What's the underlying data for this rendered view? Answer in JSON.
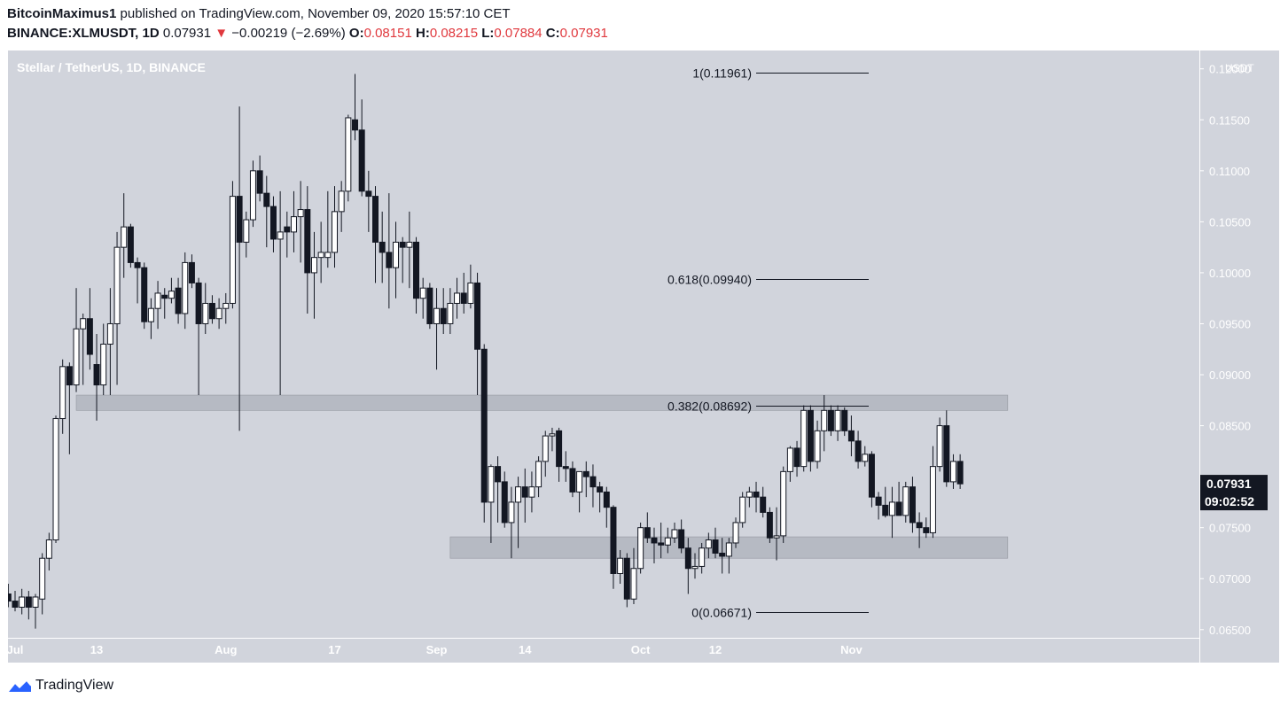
{
  "header": {
    "author": "BitcoinMaximus1",
    "published": "published on TradingView.com, November 09, 2020 15:57:10 CET",
    "symbol": "BINANCE:XLMUSDT, 1D",
    "last": "0.07931",
    "change": "−0.00219 (−2.69%)",
    "open_label": "O:",
    "open": "0.08151",
    "high_label": "H:",
    "high": "0.08215",
    "low_label": "L:",
    "low": "0.07884",
    "close_label": "C:",
    "close": "0.07931"
  },
  "footer": {
    "brand": "TradingView"
  },
  "colors": {
    "background": "#d1d4dc",
    "bull_body": "#ffffff",
    "bear_body": "#131722",
    "wick": "#131722",
    "zone": "#b2b5be",
    "price_tag": "#131722",
    "change_red": "#e0383d"
  },
  "chart_data": {
    "type": "candlestick",
    "title": "Stellar / TetherUS, 1D, BINANCE",
    "y_unit_label": "USDT",
    "ylim": [
      0.0642,
      0.1218
    ],
    "y_ticks": [
      "0.12000",
      "0.11500",
      "0.11000",
      "0.10500",
      "0.10000",
      "0.09500",
      "0.09000",
      "0.08500",
      "0.07500",
      "0.07000",
      "0.06500"
    ],
    "x_ticks": [
      {
        "date": "2020-07-01",
        "label": "Jul"
      },
      {
        "date": "2020-07-13",
        "label": "13"
      },
      {
        "date": "2020-08-01",
        "label": "Aug"
      },
      {
        "date": "2020-08-17",
        "label": "17"
      },
      {
        "date": "2020-09-01",
        "label": "Sep"
      },
      {
        "date": "2020-09-14",
        "label": "14"
      },
      {
        "date": "2020-10-01",
        "label": "Oct"
      },
      {
        "date": "2020-10-12",
        "label": "12"
      },
      {
        "date": "2020-11-01",
        "label": "Nov"
      }
    ],
    "last_price": "0.07931",
    "countdown": "09:02:52",
    "fib_levels": [
      {
        "label": "1(0.11961)",
        "value": 0.11961
      },
      {
        "label": "0.618(0.09940)",
        "value": 0.0994
      },
      {
        "label": "0.382(0.08692)",
        "value": 0.08692
      },
      {
        "label": "0(0.06671)",
        "value": 0.06671
      }
    ],
    "zones": [
      {
        "from_date": "2020-07-10",
        "to_date": "2020-11-24",
        "low": 0.0865,
        "high": 0.088
      },
      {
        "from_date": "2020-09-03",
        "to_date": "2020-11-24",
        "low": 0.072,
        "high": 0.0741
      }
    ],
    "ohlc": [
      [
        "2020-06-29",
        0.068,
        0.069,
        0.067,
        0.0685
      ],
      [
        "2020-06-30",
        0.0685,
        0.0695,
        0.0672,
        0.0678
      ],
      [
        "2020-07-01",
        0.0678,
        0.0688,
        0.0668,
        0.0672
      ],
      [
        "2020-07-02",
        0.0672,
        0.069,
        0.0665,
        0.0682
      ],
      [
        "2020-07-03",
        0.0682,
        0.0688,
        0.066,
        0.0672
      ],
      [
        "2020-07-04",
        0.0672,
        0.0685,
        0.0651,
        0.0682
      ],
      [
        "2020-07-05",
        0.068,
        0.0725,
        0.0665,
        0.072
      ],
      [
        "2020-07-06",
        0.072,
        0.0745,
        0.0708,
        0.0738
      ],
      [
        "2020-07-07",
        0.0738,
        0.086,
        0.0735,
        0.0857
      ],
      [
        "2020-07-08",
        0.0857,
        0.0915,
        0.0842,
        0.0908
      ],
      [
        "2020-07-09",
        0.0908,
        0.0912,
        0.0822,
        0.089
      ],
      [
        "2020-07-10",
        0.089,
        0.0985,
        0.0883,
        0.0945
      ],
      [
        "2020-07-11",
        0.0945,
        0.096,
        0.089,
        0.0955
      ],
      [
        "2020-07-12",
        0.0955,
        0.0985,
        0.0905,
        0.092
      ],
      [
        "2020-07-13",
        0.091,
        0.094,
        0.0855,
        0.089
      ],
      [
        "2020-07-14",
        0.089,
        0.095,
        0.088,
        0.093
      ],
      [
        "2020-07-15",
        0.093,
        0.0985,
        0.088,
        0.095
      ],
      [
        "2020-07-16",
        0.095,
        0.104,
        0.089,
        0.1025
      ],
      [
        "2020-07-17",
        0.1025,
        0.1078,
        0.0995,
        0.1045
      ],
      [
        "2020-07-18",
        0.1045,
        0.1048,
        0.1005,
        0.101
      ],
      [
        "2020-07-19",
        0.101,
        0.1015,
        0.097,
        0.1005
      ],
      [
        "2020-07-20",
        0.1005,
        0.101,
        0.0945,
        0.0952
      ],
      [
        "2020-07-21",
        0.0952,
        0.0975,
        0.0935,
        0.0965
      ],
      [
        "2020-07-22",
        0.0965,
        0.0992,
        0.0945,
        0.098
      ],
      [
        "2020-07-23",
        0.0978,
        0.0985,
        0.0955,
        0.0975
      ],
      [
        "2020-07-24",
        0.0975,
        0.0995,
        0.097,
        0.0982
      ],
      [
        "2020-07-25",
        0.0985,
        0.0995,
        0.095,
        0.096
      ],
      [
        "2020-07-26",
        0.096,
        0.102,
        0.0945,
        0.101
      ],
      [
        "2020-07-27",
        0.101,
        0.1018,
        0.0985,
        0.099
      ],
      [
        "2020-07-28",
        0.099,
        0.0995,
        0.088,
        0.095
      ],
      [
        "2020-07-29",
        0.095,
        0.099,
        0.094,
        0.097
      ],
      [
        "2020-07-30",
        0.097,
        0.0978,
        0.095,
        0.0955
      ],
      [
        "2020-07-31",
        0.0955,
        0.0975,
        0.0945,
        0.0965
      ],
      [
        "2020-08-01",
        0.0965,
        0.098,
        0.095,
        0.097
      ],
      [
        "2020-08-02",
        0.097,
        0.109,
        0.0965,
        0.1075
      ],
      [
        "2020-08-03",
        0.1075,
        0.1163,
        0.0845,
        0.103
      ],
      [
        "2020-08-04",
        0.103,
        0.106,
        0.1015,
        0.1052
      ],
      [
        "2020-08-05",
        0.1052,
        0.111,
        0.1045,
        0.11
      ],
      [
        "2020-08-06",
        0.11,
        0.1115,
        0.107,
        0.1078
      ],
      [
        "2020-08-07",
        0.1078,
        0.1095,
        0.1025,
        0.1065
      ],
      [
        "2020-08-08",
        0.1065,
        0.1075,
        0.102,
        0.1033
      ],
      [
        "2020-08-09",
        0.1033,
        0.108,
        0.088,
        0.104
      ],
      [
        "2020-08-10",
        0.1045,
        0.106,
        0.1015,
        0.104
      ],
      [
        "2020-08-11",
        0.104,
        0.108,
        0.102,
        0.1055
      ],
      [
        "2020-08-12",
        0.1055,
        0.109,
        0.101,
        0.1062
      ],
      [
        "2020-08-13",
        0.1062,
        0.1085,
        0.096,
        0.1
      ],
      [
        "2020-08-14",
        0.1,
        0.104,
        0.0955,
        0.1015
      ],
      [
        "2020-08-15",
        0.1015,
        0.105,
        0.099,
        0.102
      ],
      [
        "2020-08-16",
        0.1015,
        0.108,
        0.1005,
        0.102
      ],
      [
        "2020-08-17",
        0.102,
        0.1085,
        0.1005,
        0.106
      ],
      [
        "2020-08-18",
        0.106,
        0.109,
        0.104,
        0.108
      ],
      [
        "2020-08-19",
        0.108,
        0.1155,
        0.107,
        0.1152
      ],
      [
        "2020-08-20",
        0.115,
        0.1195,
        0.113,
        0.114
      ],
      [
        "2020-08-21",
        0.114,
        0.117,
        0.1075,
        0.108
      ],
      [
        "2020-08-22",
        0.108,
        0.11,
        0.104,
        0.1075
      ],
      [
        "2020-08-23",
        0.1075,
        0.1085,
        0.099,
        0.103
      ],
      [
        "2020-08-24",
        0.103,
        0.106,
        0.099,
        0.102
      ],
      [
        "2020-08-25",
        0.102,
        0.1078,
        0.0965,
        0.1005
      ],
      [
        "2020-08-26",
        0.1005,
        0.105,
        0.0975,
        0.103
      ],
      [
        "2020-08-27",
        0.103,
        0.1035,
        0.099,
        0.1025
      ],
      [
        "2020-08-28",
        0.1025,
        0.106,
        0.0985,
        0.103
      ],
      [
        "2020-08-29",
        0.103,
        0.1035,
        0.096,
        0.0975
      ],
      [
        "2020-08-30",
        0.0975,
        0.0995,
        0.0955,
        0.0985
      ],
      [
        "2020-08-31",
        0.0985,
        0.099,
        0.0945,
        0.095
      ],
      [
        "2020-09-01",
        0.095,
        0.0985,
        0.0905,
        0.0965
      ],
      [
        "2020-09-02",
        0.0965,
        0.0985,
        0.094,
        0.095
      ],
      [
        "2020-09-03",
        0.095,
        0.0985,
        0.094,
        0.097
      ],
      [
        "2020-09-04",
        0.097,
        0.0995,
        0.0955,
        0.098
      ],
      [
        "2020-09-05",
        0.098,
        0.1,
        0.096,
        0.097
      ],
      [
        "2020-09-06",
        0.097,
        0.1008,
        0.0965,
        0.099
      ],
      [
        "2020-09-07",
        0.099,
        0.1,
        0.088,
        0.0925
      ],
      [
        "2020-09-08",
        0.0925,
        0.093,
        0.0755,
        0.0775
      ],
      [
        "2020-09-09",
        0.0775,
        0.0812,
        0.0735,
        0.081
      ],
      [
        "2020-09-10",
        0.081,
        0.082,
        0.0755,
        0.0795
      ],
      [
        "2020-09-11",
        0.0795,
        0.0805,
        0.075,
        0.0755
      ],
      [
        "2020-09-12",
        0.0755,
        0.079,
        0.072,
        0.0775
      ],
      [
        "2020-09-13",
        0.0775,
        0.08,
        0.073,
        0.079
      ],
      [
        "2020-09-14",
        0.079,
        0.0808,
        0.0755,
        0.078
      ],
      [
        "2020-09-15",
        0.078,
        0.0805,
        0.0765,
        0.079
      ],
      [
        "2020-09-16",
        0.079,
        0.082,
        0.078,
        0.0815
      ],
      [
        "2020-09-17",
        0.0815,
        0.0845,
        0.08,
        0.084
      ],
      [
        "2020-09-18",
        0.084,
        0.0848,
        0.0825,
        0.0842
      ],
      [
        "2020-09-19",
        0.0845,
        0.0848,
        0.0795,
        0.081
      ],
      [
        "2020-09-20",
        0.081,
        0.0825,
        0.0795,
        0.0808
      ],
      [
        "2020-09-21",
        0.0808,
        0.0815,
        0.078,
        0.0785
      ],
      [
        "2020-09-22",
        0.0785,
        0.0805,
        0.0765,
        0.0805
      ],
      [
        "2020-09-23",
        0.0805,
        0.0815,
        0.078,
        0.08
      ],
      [
        "2020-09-24",
        0.08,
        0.0812,
        0.077,
        0.079
      ],
      [
        "2020-09-25",
        0.079,
        0.0795,
        0.0765,
        0.0785
      ],
      [
        "2020-09-26",
        0.0785,
        0.079,
        0.075,
        0.077
      ],
      [
        "2020-09-27",
        0.077,
        0.0772,
        0.069,
        0.0705
      ],
      [
        "2020-09-28",
        0.0705,
        0.0728,
        0.0695,
        0.072
      ],
      [
        "2020-09-29",
        0.072,
        0.0725,
        0.0672,
        0.068
      ],
      [
        "2020-09-30",
        0.068,
        0.073,
        0.0675,
        0.071
      ],
      [
        "2020-10-01",
        0.071,
        0.0755,
        0.0705,
        0.075
      ],
      [
        "2020-10-02",
        0.075,
        0.0765,
        0.0735,
        0.074
      ],
      [
        "2020-10-03",
        0.074,
        0.075,
        0.0715,
        0.0735
      ],
      [
        "2020-10-04",
        0.0735,
        0.0755,
        0.072,
        0.0733
      ],
      [
        "2020-10-05",
        0.0733,
        0.075,
        0.0725,
        0.074
      ],
      [
        "2020-10-06",
        0.074,
        0.0755,
        0.0735,
        0.0748
      ],
      [
        "2020-10-07",
        0.0748,
        0.0758,
        0.0725,
        0.073
      ],
      [
        "2020-10-08",
        0.073,
        0.074,
        0.0685,
        0.071
      ],
      [
        "2020-10-09",
        0.071,
        0.0725,
        0.07,
        0.0712
      ],
      [
        "2020-10-10",
        0.0712,
        0.0735,
        0.0705,
        0.073
      ],
      [
        "2020-10-11",
        0.073,
        0.0745,
        0.072,
        0.0738
      ],
      [
        "2020-10-12",
        0.0738,
        0.075,
        0.072,
        0.0725
      ],
      [
        "2020-10-13",
        0.0725,
        0.074,
        0.0705,
        0.0722
      ],
      [
        "2020-10-14",
        0.0722,
        0.074,
        0.0705,
        0.0735
      ],
      [
        "2020-10-15",
        0.0735,
        0.076,
        0.073,
        0.0755
      ],
      [
        "2020-10-16",
        0.0755,
        0.0785,
        0.075,
        0.078
      ],
      [
        "2020-10-17",
        0.078,
        0.079,
        0.077,
        0.0785
      ],
      [
        "2020-10-18",
        0.0785,
        0.0795,
        0.0765,
        0.078
      ],
      [
        "2020-10-19",
        0.078,
        0.079,
        0.076,
        0.0765
      ],
      [
        "2020-10-20",
        0.0765,
        0.077,
        0.0735,
        0.074
      ],
      [
        "2020-10-21",
        0.074,
        0.077,
        0.0718,
        0.0742
      ],
      [
        "2020-10-22",
        0.0742,
        0.081,
        0.0735,
        0.0805
      ],
      [
        "2020-10-23",
        0.0805,
        0.083,
        0.0795,
        0.0828
      ],
      [
        "2020-10-24",
        0.0828,
        0.0835,
        0.08,
        0.081
      ],
      [
        "2020-10-25",
        0.081,
        0.087,
        0.0805,
        0.0865
      ],
      [
        "2020-10-26",
        0.0865,
        0.087,
        0.0805,
        0.0815
      ],
      [
        "2020-10-27",
        0.0815,
        0.0855,
        0.0808,
        0.0845
      ],
      [
        "2020-10-28",
        0.0845,
        0.088,
        0.0825,
        0.0865
      ],
      [
        "2020-10-29",
        0.0865,
        0.087,
        0.084,
        0.0845
      ],
      [
        "2020-10-30",
        0.0845,
        0.087,
        0.0835,
        0.0865
      ],
      [
        "2020-10-31",
        0.0865,
        0.0868,
        0.084,
        0.0845
      ],
      [
        "2020-11-01",
        0.0845,
        0.086,
        0.082,
        0.0835
      ],
      [
        "2020-11-02",
        0.0835,
        0.0845,
        0.0808,
        0.0815
      ],
      [
        "2020-11-03",
        0.0815,
        0.083,
        0.081,
        0.0822
      ],
      [
        "2020-11-04",
        0.0822,
        0.0825,
        0.077,
        0.078
      ],
      [
        "2020-11-05",
        0.078,
        0.0785,
        0.0758,
        0.0772
      ],
      [
        "2020-11-06",
        0.0772,
        0.079,
        0.076,
        0.0762
      ],
      [
        "2020-11-07",
        0.0762,
        0.079,
        0.074,
        0.0775
      ],
      [
        "2020-11-08",
        0.0775,
        0.0795,
        0.0765,
        0.0762
      ],
      [
        "2020-11-09",
        0.0762,
        0.0795,
        0.0755,
        0.079
      ],
      [
        "2020-11-10",
        0.079,
        0.08,
        0.0745,
        0.0755
      ],
      [
        "2020-11-11",
        0.0755,
        0.0765,
        0.073,
        0.075
      ],
      [
        "2020-11-12",
        0.075,
        0.076,
        0.074,
        0.0745
      ],
      [
        "2020-11-13",
        0.0745,
        0.083,
        0.074,
        0.081
      ],
      [
        "2020-11-14",
        0.081,
        0.0858,
        0.0805,
        0.085
      ],
      [
        "2020-11-15",
        0.085,
        0.0865,
        0.079,
        0.0795
      ],
      [
        "2020-11-16",
        0.0795,
        0.0822,
        0.0788,
        0.0815
      ],
      [
        "2020-11-17",
        0.0815,
        0.0822,
        0.0788,
        0.0793
      ]
    ]
  }
}
